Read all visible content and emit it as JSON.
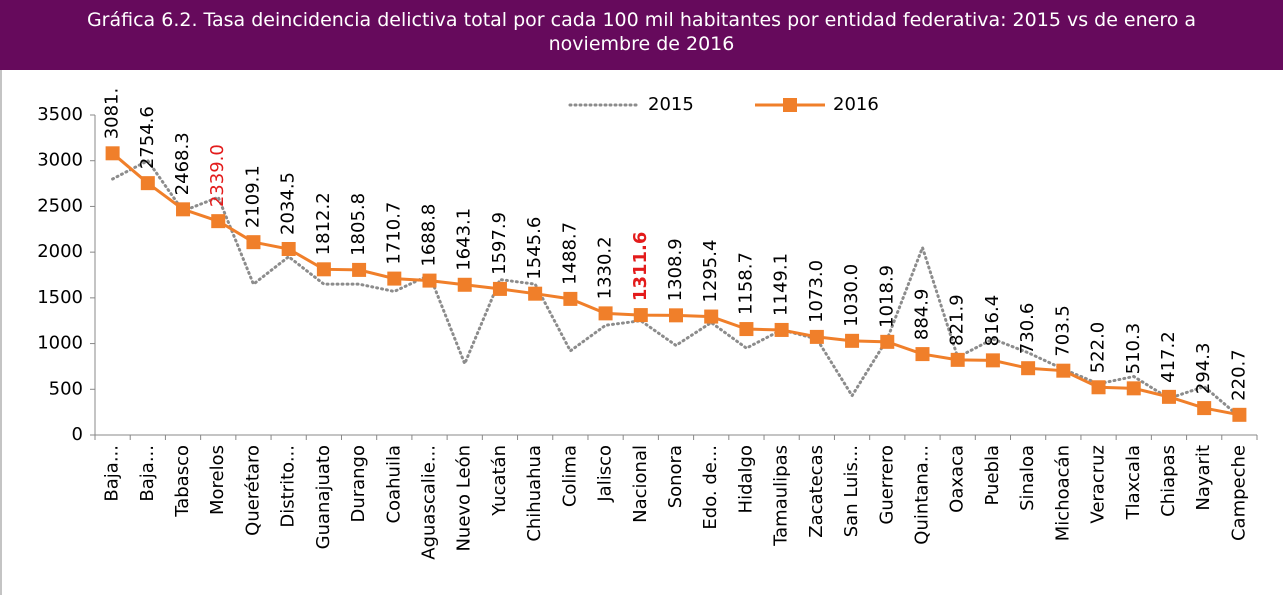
{
  "chart_data": {
    "type": "line",
    "title": "Gráfica 6.2. Tasa deincidencia delictiva total por cada 100 mil habitantes por entidad federativa: 2015  vs  de enero a noviembre de 2016",
    "categories": [
      "Baja...",
      "Baja...",
      "Tabasco",
      "Morelos",
      "Querétaro",
      "Distrito...",
      "Guanajuato",
      "Durango",
      "Coahuila",
      "Aguascalie...",
      "Nuevo León",
      "Yucatán",
      "Chihuahua",
      "Colima",
      "Jalisco",
      "Nacional",
      "Sonora",
      "Edo. de...",
      "Hidalgo",
      "Tamaulipas",
      "Zacatecas",
      "San Luis...",
      "Guerrero",
      "Quintana...",
      "Oaxaca",
      "Puebla",
      "Sinaloa",
      "Michoacán",
      "Veracruz",
      "Tlaxcala",
      "Chiapas",
      "Nayarit",
      "Campeche"
    ],
    "series": [
      {
        "name": "2015",
        "color": "#8c8c8c",
        "dash": "dotted",
        "values": [
          2800,
          3000,
          2450,
          2600,
          1650,
          1950,
          1650,
          1650,
          1570,
          1750,
          780,
          1700,
          1650,
          920,
          1200,
          1250,
          980,
          1230,
          950,
          1150,
          1050,
          430,
          1050,
          2050,
          850,
          1050,
          900,
          720,
          560,
          640,
          400,
          530,
          200
        ]
      },
      {
        "name": "2016",
        "color": "#f07f2a",
        "marker": "square",
        "values": [
          3081,
          2754.6,
          2468.3,
          2339.0,
          2109.1,
          2034.5,
          1812.2,
          1805.8,
          1710.7,
          1688.8,
          1643.1,
          1597.9,
          1545.6,
          1488.7,
          1330.2,
          1311.6,
          1308.9,
          1295.4,
          1158.7,
          1149.1,
          1073.0,
          1030.0,
          1018.9,
          884.9,
          821.9,
          816.4,
          730.6,
          703.5,
          522.0,
          510.3,
          417.2,
          294.3,
          220.7
        ],
        "value_labels": [
          "3081.",
          "2754.6",
          "2468.3",
          "2339.0",
          "2109.1",
          "2034.5",
          "1812.2",
          "1805.8",
          "1710.7",
          "1688.8",
          "1643.1",
          "1597.9",
          "1545.6",
          "1488.7",
          "1330.2",
          "1311.6",
          "1308.9",
          "1295.4",
          "1158.7",
          "1149.1",
          "1073.0",
          "1030.0",
          "1018.9",
          "884.9",
          "821.9",
          "816.4",
          "730.6",
          "703.5",
          "522.0",
          "510.3",
          "417.2",
          "294.3",
          "220.7"
        ],
        "label_highlights": [
          {
            "index": 3,
            "color": "#e31b1b"
          },
          {
            "index": 15,
            "color": "#e31b1b",
            "bold": true
          }
        ]
      }
    ],
    "ylim": [
      0,
      3500
    ],
    "yticks": [
      0,
      500,
      1000,
      1500,
      2000,
      2500,
      3000,
      3500
    ],
    "grid": false,
    "legend": "top"
  }
}
